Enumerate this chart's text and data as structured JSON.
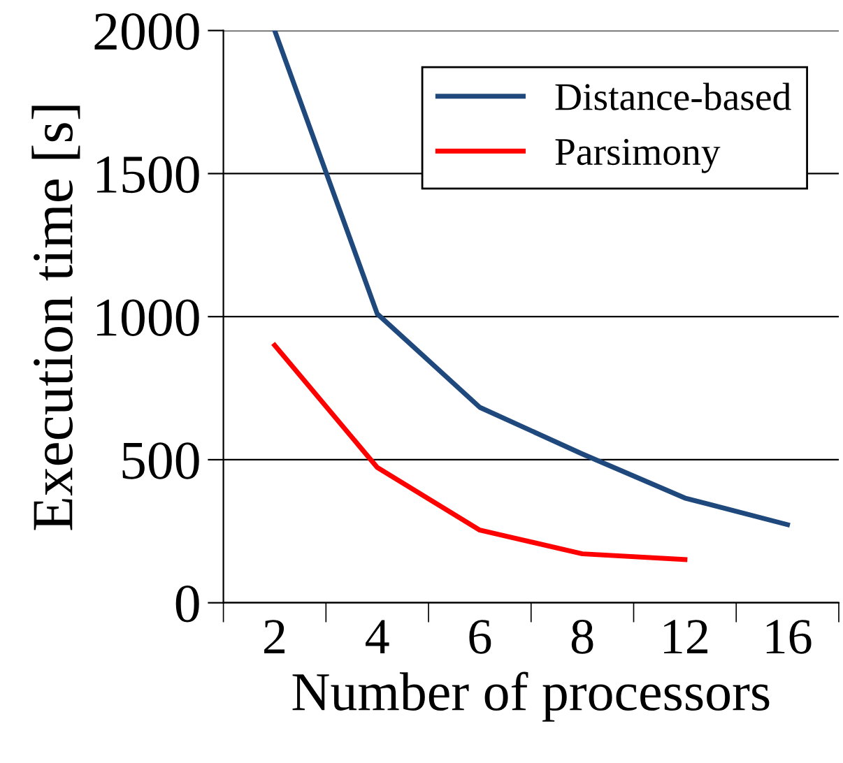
{
  "chart_data": {
    "type": "line",
    "xlabel": "Number of processors",
    "ylabel": "Execution time [s]",
    "categories": [
      "2",
      "4",
      "6",
      "8",
      "12",
      "16"
    ],
    "series": [
      {
        "name": "Distance-based",
        "color": "#1f497d",
        "values": [
          2000,
          1010,
          683,
          520,
          366,
          273
        ]
      },
      {
        "name": "Parsimony",
        "color": "#ff0000",
        "values": [
          900,
          473,
          254,
          171,
          151,
          null
        ]
      }
    ],
    "ylim": [
      0,
      2000
    ],
    "yticks": [
      0,
      500,
      1000,
      1500,
      2000
    ],
    "grid": "y",
    "legend": "top right",
    "marker": "none",
    "line_style": "solid"
  }
}
